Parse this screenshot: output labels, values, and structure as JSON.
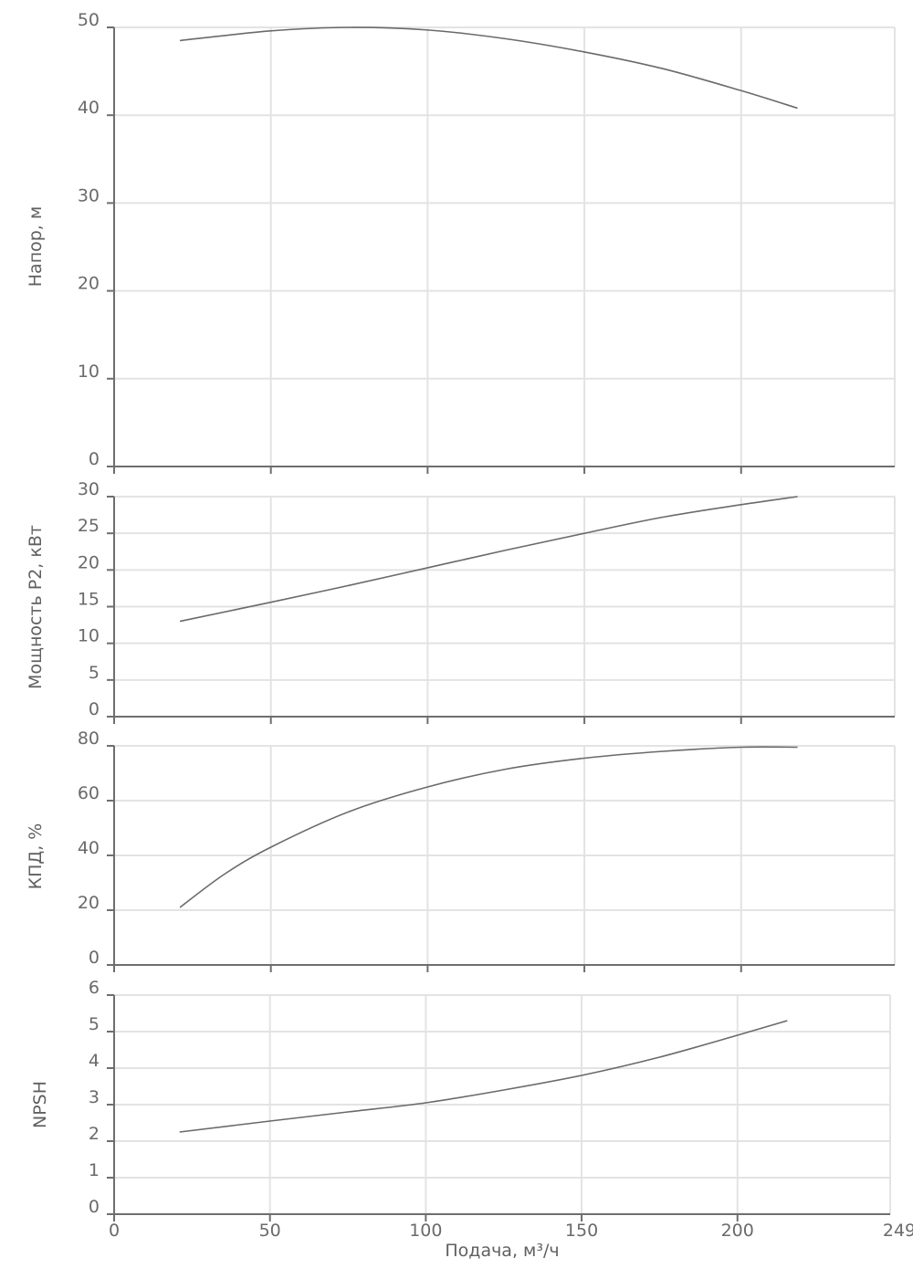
{
  "chart_data": [
    {
      "type": "line",
      "ylabel": "Напор, м",
      "xlim": [
        0,
        249
      ],
      "ylim": [
        0,
        50
      ],
      "yticks": [
        0,
        10,
        20,
        30,
        40,
        50
      ],
      "grid": true,
      "color": "#6a6a6a",
      "series": [
        {
          "x": [
            21,
            50,
            75,
            100,
            125,
            150,
            175,
            200,
            218
          ],
          "y": [
            48.5,
            49.6,
            50.0,
            49.7,
            48.7,
            47.2,
            45.3,
            42.8,
            40.8
          ]
        }
      ]
    },
    {
      "type": "line",
      "ylabel": "Мощность P2, кВт",
      "xlim": [
        0,
        249
      ],
      "ylim": [
        0,
        30
      ],
      "yticks": [
        0,
        5,
        10,
        15,
        20,
        25,
        30
      ],
      "grid": true,
      "color": "#6a6a6a",
      "series": [
        {
          "x": [
            21,
            50,
            75,
            100,
            125,
            150,
            175,
            200,
            218
          ],
          "y": [
            13.0,
            15.6,
            17.9,
            20.3,
            22.7,
            25.0,
            27.2,
            28.9,
            30.0
          ]
        }
      ]
    },
    {
      "type": "line",
      "ylabel": "КПД, %",
      "xlim": [
        0,
        249
      ],
      "ylim": [
        0,
        80
      ],
      "yticks": [
        0,
        20,
        40,
        60,
        80
      ],
      "grid": true,
      "color": "#6a6a6a",
      "series": [
        {
          "x": [
            21,
            35,
            50,
            75,
            100,
            125,
            150,
            175,
            200,
            218
          ],
          "y": [
            21,
            33,
            43,
            56,
            65,
            71.5,
            75.5,
            78,
            79.5,
            79.5
          ]
        }
      ]
    },
    {
      "type": "line",
      "ylabel": "NPSH",
      "xlabel": "Подача, м³/ч",
      "xlim": [
        0,
        249
      ],
      "xticks": [
        0,
        50,
        100,
        150,
        200,
        249
      ],
      "ylim": [
        0,
        6
      ],
      "yticks": [
        0,
        1,
        2,
        3,
        4,
        5,
        6
      ],
      "grid": true,
      "color": "#6a6a6a",
      "series": [
        {
          "x": [
            21,
            50,
            75,
            100,
            125,
            150,
            175,
            200,
            216
          ],
          "y": [
            2.25,
            2.55,
            2.8,
            3.05,
            3.4,
            3.8,
            4.3,
            4.9,
            5.3
          ]
        }
      ]
    }
  ]
}
